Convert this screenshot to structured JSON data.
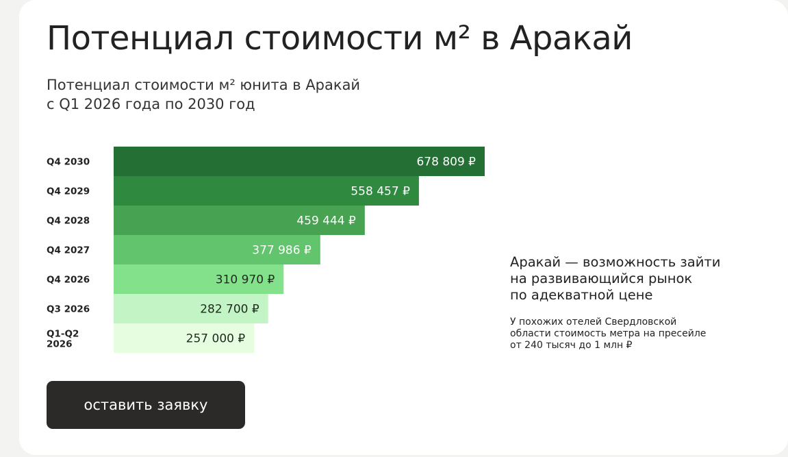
{
  "header": {
    "title": "Потенциал стоимости м² в Аракай",
    "subtitle_line1": "Потенциал стоимости м² юнита в Аракай",
    "subtitle_line2": "с Q1 2026 года по 2030 год"
  },
  "chart_data": {
    "type": "bar",
    "orientation": "horizontal",
    "categories": [
      "Q4 2030",
      "Q4 2029",
      "Q4 2028",
      "Q4 2027",
      "Q4 2026",
      "Q3 2026",
      "Q1-Q2 2026"
    ],
    "category_lines": [
      [
        "Q4 2030"
      ],
      [
        "Q4 2029"
      ],
      [
        "Q4 2028"
      ],
      [
        "Q4 2027"
      ],
      [
        "Q4 2026"
      ],
      [
        "Q3 2026"
      ],
      [
        "Q1-Q2",
        "2026"
      ]
    ],
    "values": [
      678809,
      558457,
      459444,
      377986,
      310970,
      282700,
      257000
    ],
    "value_labels": [
      "678 809 ₽",
      "558 457 ₽",
      "459 444 ₽",
      "377 986 ₽",
      "310 970 ₽",
      "282 700 ₽",
      "257 000 ₽"
    ],
    "bar_colors": [
      "#236f34",
      "#2f8a40",
      "#47a251",
      "#62c46c",
      "#82e18a",
      "#c3f4c6",
      "#e7fde0"
    ],
    "label_colors": [
      "#ffffff",
      "#ffffff",
      "#ffffff",
      "#ffffff",
      "#1e2a1e",
      "#1e2a1e",
      "#1e2a1e"
    ],
    "grid": false,
    "legend": "none"
  },
  "side": {
    "heading_line1": "Аракай — возможность зайти",
    "heading_line2": "на развивающийся рынок",
    "heading_line3": "по адекватной цене",
    "text_line1": "У похожих отелей Свердловской",
    "text_line2": "области стоимость метра на пресейле",
    "text_line3": "от 240 тысяч до 1 млн ₽"
  },
  "cta": {
    "label": "оставить заявку"
  }
}
